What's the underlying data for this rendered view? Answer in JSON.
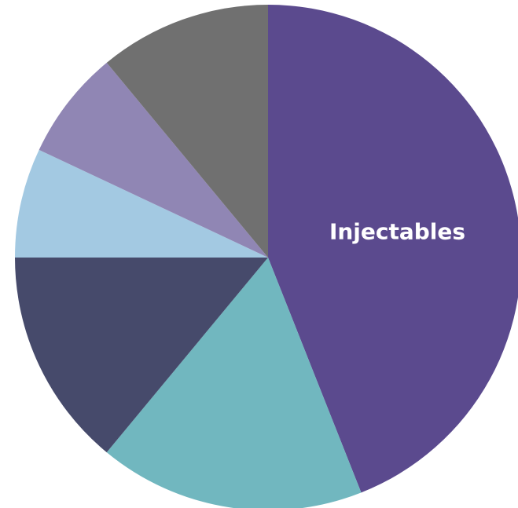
{
  "chart_data": {
    "type": "pie",
    "start_angle_deg": 0,
    "direction": "clockwise",
    "slices": [
      {
        "label": "Injectables",
        "value": 44,
        "color": "#5b4a8e",
        "label_shown": true
      },
      {
        "label": "",
        "value": 17,
        "color": "#71b7bf",
        "label_shown": false
      },
      {
        "label": "",
        "value": 14,
        "color": "#464a6b",
        "label_shown": false
      },
      {
        "label": "",
        "value": 7,
        "color": "#a3c9e2",
        "label_shown": false
      },
      {
        "label": "",
        "value": 7,
        "color": "#9086b4",
        "label_shown": false
      },
      {
        "label": "",
        "value": 11,
        "color": "#707070",
        "label_shown": false
      }
    ]
  }
}
